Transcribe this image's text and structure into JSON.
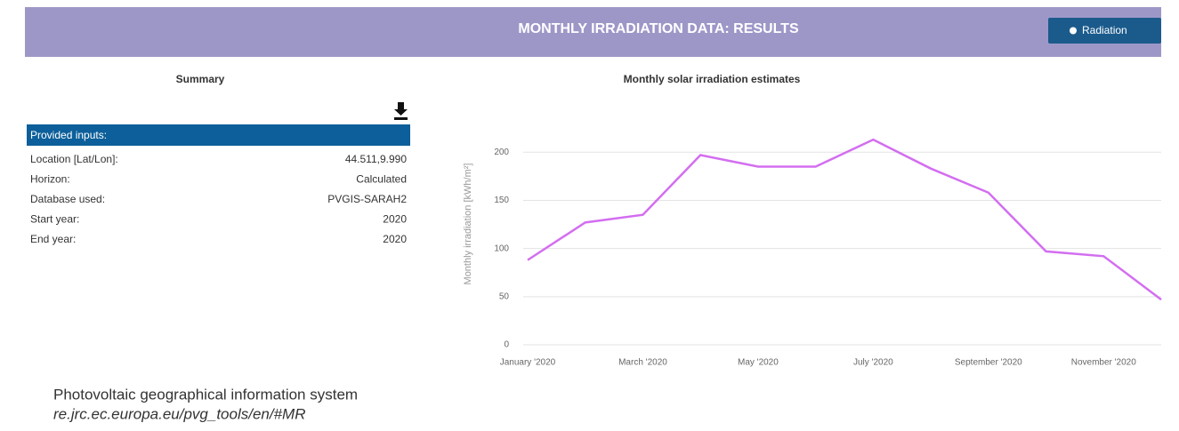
{
  "header": {
    "title": "MONTHLY IRRADIATION DATA: RESULTS",
    "button": "Radiation"
  },
  "summary": {
    "title": "Summary",
    "section": "Provided inputs:",
    "rows": [
      [
        "Location [Lat/Lon]:",
        "44.511,9.990"
      ],
      [
        "Horizon:",
        "Calculated"
      ],
      [
        "Database used:",
        "PVGIS-SARAH2"
      ],
      [
        "Start year:",
        "2020"
      ],
      [
        "End year:",
        "2020"
      ]
    ]
  },
  "chart_data": {
    "type": "line",
    "title": "Monthly solar irradiation estimates",
    "y_label": "Monthly irradiation [kWh/m²]",
    "categories": [
      "January '2020",
      null,
      "March '2020",
      null,
      "May '2020",
      null,
      "July '2020",
      null,
      "September '2020",
      null,
      "November '2020",
      null
    ],
    "values": [
      88,
      127,
      135,
      197,
      185,
      185,
      213,
      183,
      158,
      97,
      92,
      47
    ],
    "color": "#d36ef0",
    "ylim": [
      0,
      215
    ],
    "yticks": [
      0,
      50,
      100,
      150,
      200
    ],
    "grid": true
  },
  "footer": {
    "lines": [
      "Photovoltaic geographical information system",
      "re.jrc.ec.europa.eu/pvg_tools/en/#MR"
    ]
  }
}
